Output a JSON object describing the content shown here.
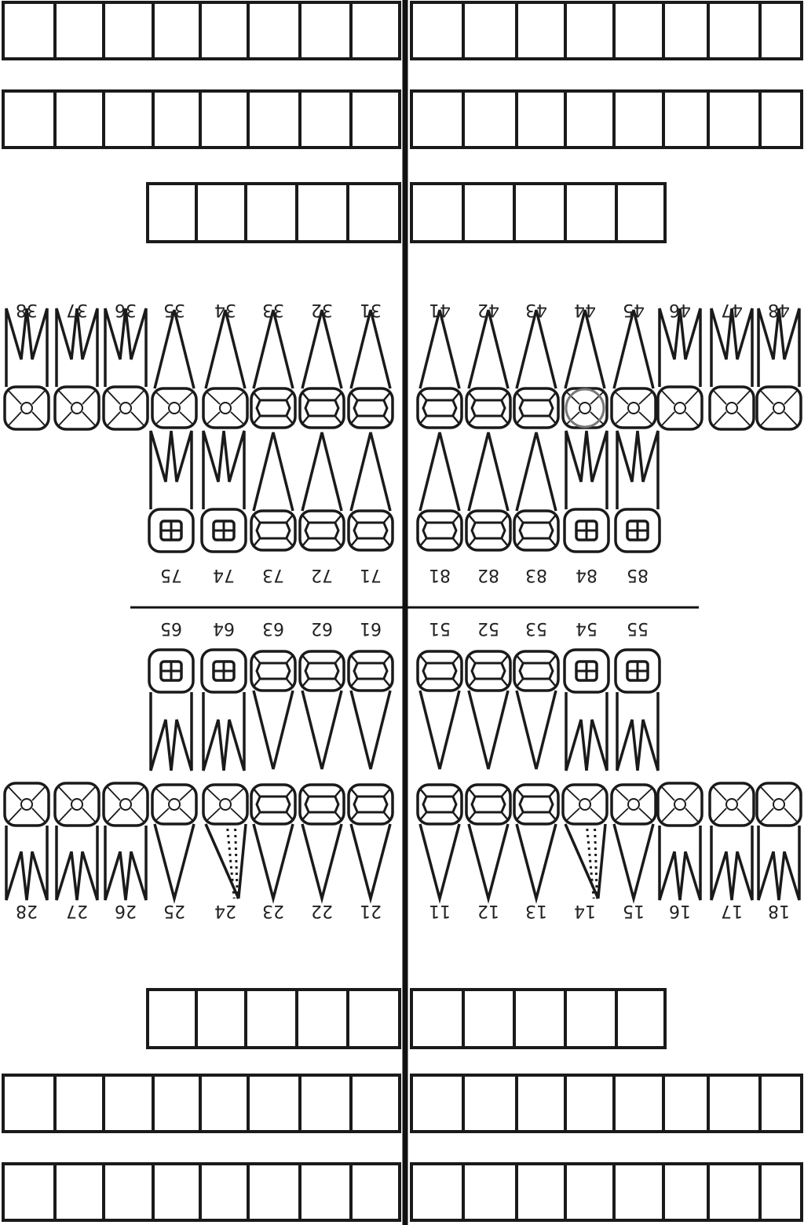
{
  "chart_type": "dental-odontogram",
  "upper_permanent_numbers": [
    "18",
    "17",
    "16",
    "15",
    "14",
    "13",
    "12",
    "11",
    "21",
    "22",
    "23",
    "24",
    "25",
    "26",
    "27",
    "28"
  ],
  "upper_primary_numbers": [
    "55",
    "54",
    "53",
    "52",
    "51",
    "61",
    "62",
    "63",
    "64",
    "65"
  ],
  "lower_primary_numbers": [
    "85",
    "84",
    "83",
    "82",
    "81",
    "71",
    "72",
    "73",
    "74",
    "75"
  ],
  "lower_permanent_numbers": [
    "48",
    "47",
    "46",
    "45",
    "44",
    "43",
    "42",
    "41",
    "31",
    "32",
    "33",
    "34",
    "35",
    "36",
    "37",
    "38"
  ],
  "marked_teeth": {
    "circled": [
      "44"
    ],
    "dotted_root": [
      "14",
      "24"
    ]
  }
}
